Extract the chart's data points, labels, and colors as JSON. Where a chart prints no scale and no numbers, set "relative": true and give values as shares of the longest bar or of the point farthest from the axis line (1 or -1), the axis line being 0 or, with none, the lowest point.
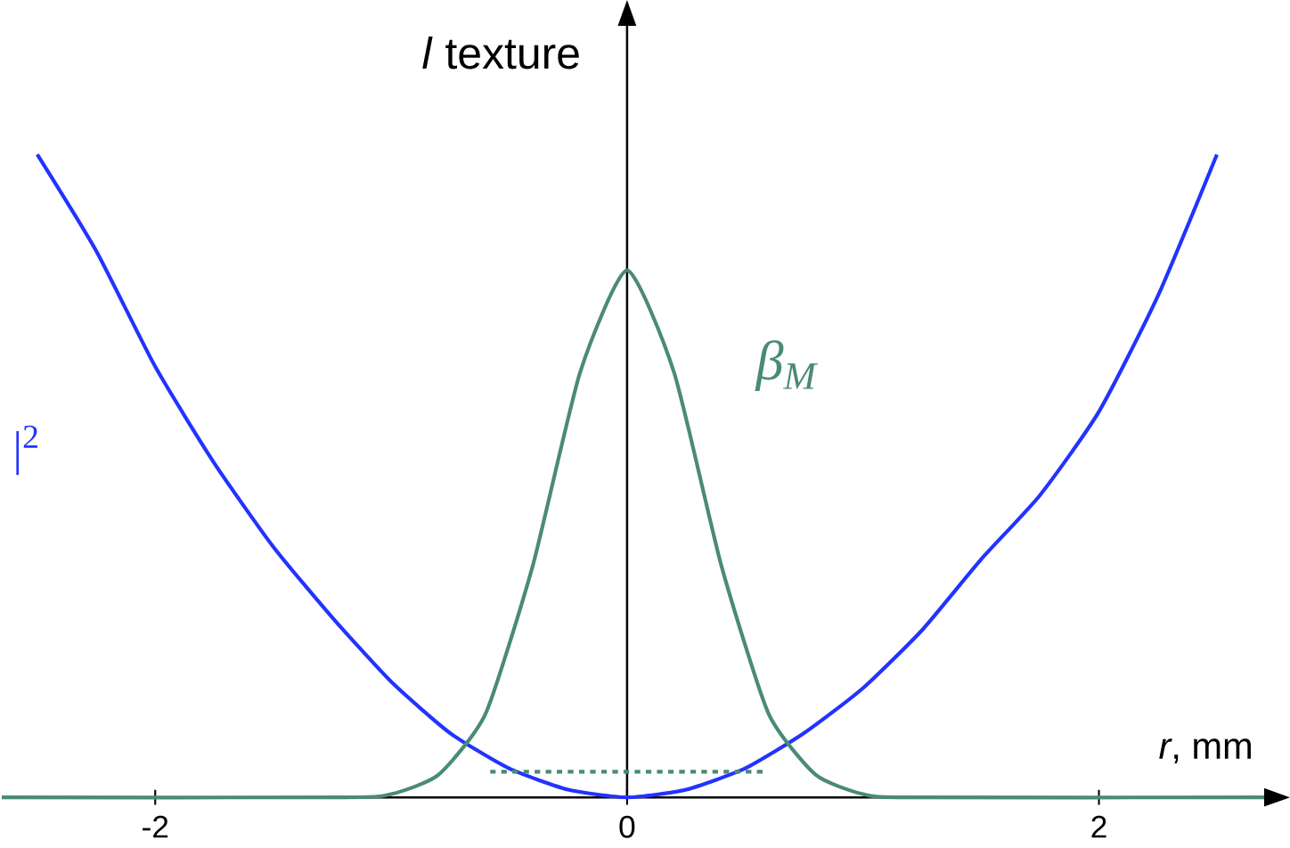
{
  "chart_data": {
    "type": "line",
    "title": "*l* texture",
    "xlabel": "*r*, mm",
    "relative": true,
    "xlim": [
      -2.65,
      2.7
    ],
    "xticks": [
      -2,
      0,
      2
    ],
    "marker": "none",
    "series": [
      {
        "name": "|$^{2}$",
        "color": "#2233ff",
        "x": [
          -2.5,
          -2.25,
          -2,
          -1.75,
          -1.5,
          -1.25,
          -1,
          -0.75,
          -0.5,
          -0.25,
          0,
          0.25,
          0.5,
          0.75,
          1,
          1.25,
          1.5,
          1.75,
          2,
          2.25,
          2.5
        ],
        "values": [
          1.0,
          0.85,
          0.67,
          0.52,
          0.39,
          0.28,
          0.18,
          0.1,
          0.045,
          0.012,
          0,
          0.012,
          0.045,
          0.1,
          0.17,
          0.26,
          0.37,
          0.47,
          0.6,
          0.78,
          1.0
        ]
      },
      {
        "name": "β$_{M}$",
        "color": "#4a8a78",
        "x": [
          -2.65,
          -1.2,
          -1,
          -0.8,
          -0.6,
          -0.4,
          -0.2,
          0,
          0.2,
          0.4,
          0.6,
          0.8,
          1,
          1.2,
          2.7
        ],
        "values": [
          0,
          0,
          0.005,
          0.035,
          0.13,
          0.36,
          0.66,
          0.82,
          0.66,
          0.36,
          0.13,
          0.035,
          0.005,
          0,
          0
        ]
      },
      {
        "color": "#4a8a78",
        "line_style": "dashed",
        "x": [
          -0.58,
          0.58
        ],
        "values": [
          0.04,
          0.04
        ]
      }
    ]
  }
}
